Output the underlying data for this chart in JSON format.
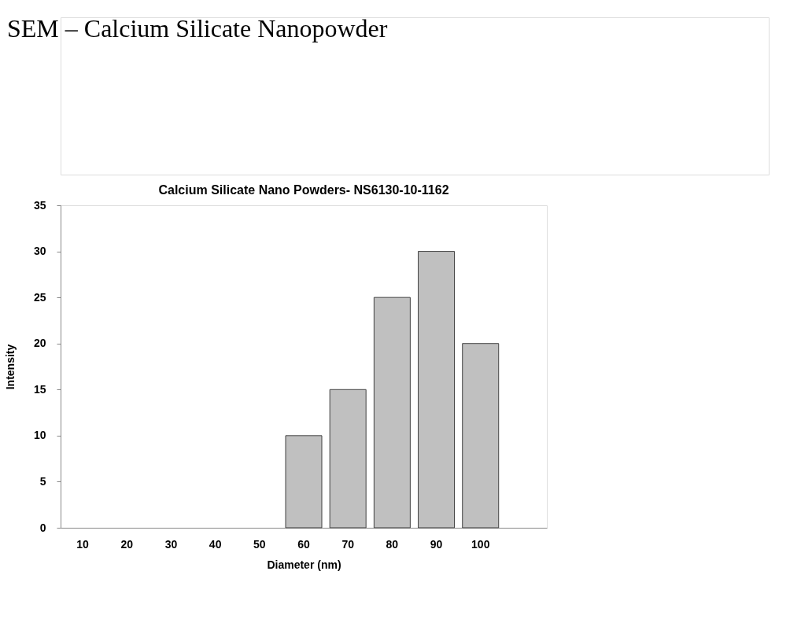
{
  "chart_data": {
    "type": "bar",
    "title": "Calcium Silicate Nano Powders- NS6130-10-1162",
    "xlabel": "Diameter (nm)",
    "ylabel": "Intensity",
    "annotations": [
      "SEM – Calcium Silicate Nanopowder"
    ],
    "categories": [
      "10",
      "20",
      "30",
      "40",
      "50",
      "60",
      "70",
      "80",
      "90",
      "100",
      null
    ],
    "values": [
      0,
      0,
      0,
      0,
      0,
      10,
      15,
      25,
      30,
      20,
      null
    ],
    "color": "#c0c0c0",
    "ylim": [
      0,
      35
    ],
    "yticks": [
      0,
      5,
      10,
      15,
      20,
      25,
      30,
      35
    ],
    "grid": false
  }
}
